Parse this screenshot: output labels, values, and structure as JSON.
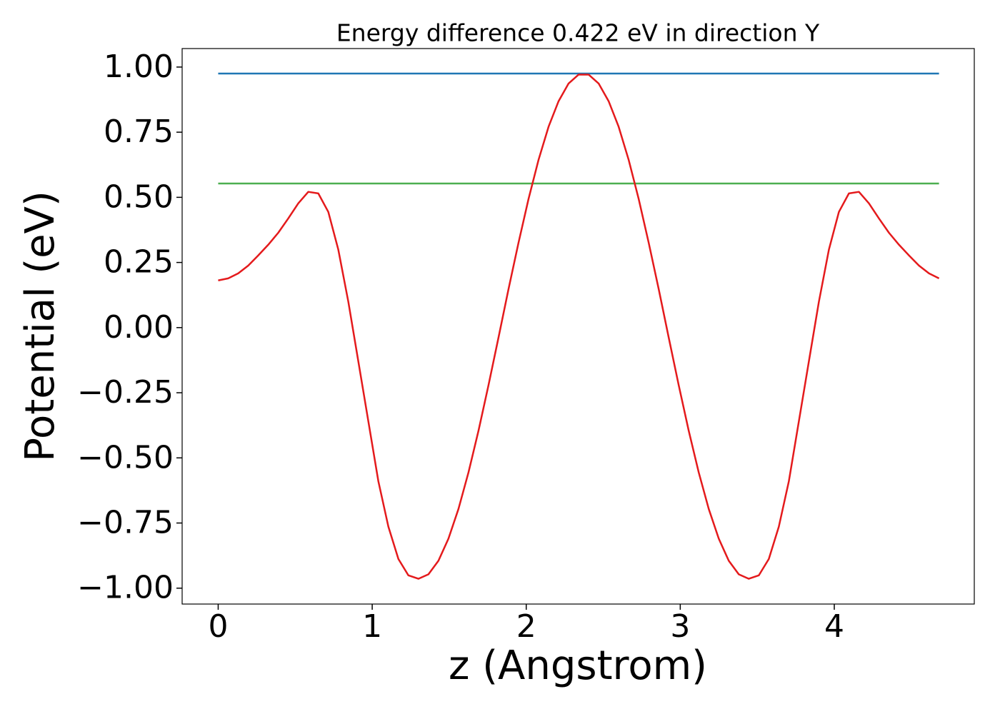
{
  "chart_data": {
    "type": "line",
    "title": "Energy difference 0.422 eV in direction Y",
    "xlabel": "z (Angstrom)",
    "ylabel": "Potential (eV)",
    "xlim": [
      -0.234,
      4.909
    ],
    "ylim": [
      -1.061,
      1.071
    ],
    "xticks": [
      0,
      1,
      2,
      3,
      4
    ],
    "yticks": [
      {
        "value": 1,
        "label": "1.00"
      },
      {
        "value": 0.75,
        "label": "0.75"
      },
      {
        "value": 0.5,
        "label": "0.50"
      },
      {
        "value": 0.25,
        "label": "0.25"
      },
      {
        "value": 0,
        "label": "0.00"
      },
      {
        "value": -0.25,
        "label": "−0.25"
      },
      {
        "value": -0.5,
        "label": "−0.50"
      },
      {
        "value": -0.75,
        "label": "−0.75"
      },
      {
        "value": -1,
        "label": "−1.00"
      }
    ],
    "grid": false,
    "series": [
      {
        "color": "#1f77b4",
        "x": [
          0,
          4.68
        ],
        "values": [
          0.975,
          0.975
        ]
      },
      {
        "color": "#4caf50",
        "x": [
          0,
          4.68
        ],
        "values": [
          0.553,
          0.553
        ]
      },
      {
        "color": "#e41a1c",
        "x": [
          0,
          0.065,
          0.13,
          0.195,
          0.26,
          0.325,
          0.39,
          0.455,
          0.52,
          0.585,
          0.65,
          0.715,
          0.78,
          0.845,
          0.91,
          0.975,
          1.04,
          1.105,
          1.17,
          1.235,
          1.3,
          1.365,
          1.43,
          1.495,
          1.56,
          1.625,
          1.69,
          1.755,
          1.82,
          1.885,
          1.95,
          2.015,
          2.08,
          2.145,
          2.21,
          2.275,
          2.34,
          2.405,
          2.47,
          2.535,
          2.6,
          2.665,
          2.73,
          2.795,
          2.86,
          2.925,
          2.99,
          3.055,
          3.12,
          3.185,
          3.25,
          3.315,
          3.38,
          3.445,
          3.51,
          3.575,
          3.64,
          3.705,
          3.77,
          3.835,
          3.9,
          3.965,
          4.03,
          4.095,
          4.16,
          4.225,
          4.29,
          4.355,
          4.42,
          4.485,
          4.55,
          4.615,
          4.68
        ],
        "values": [
          0.181,
          0.189,
          0.208,
          0.238,
          0.277,
          0.318,
          0.364,
          0.419,
          0.477,
          0.521,
          0.515,
          0.444,
          0.299,
          0.099,
          -0.13,
          -0.36,
          -0.59,
          -0.764,
          -0.888,
          -0.951,
          -0.964,
          -0.947,
          -0.895,
          -0.81,
          -0.696,
          -0.556,
          -0.396,
          -0.221,
          -0.038,
          0.148,
          0.326,
          0.494,
          0.644,
          0.771,
          0.869,
          0.937,
          0.971,
          0.971,
          0.937,
          0.869,
          0.771,
          0.644,
          0.494,
          0.326,
          0.148,
          -0.038,
          -0.221,
          -0.396,
          -0.556,
          -0.696,
          -0.81,
          -0.895,
          -0.947,
          -0.964,
          -0.951,
          -0.888,
          -0.764,
          -0.59,
          -0.36,
          -0.13,
          0.099,
          0.299,
          0.444,
          0.515,
          0.521,
          0.477,
          0.419,
          0.364,
          0.318,
          0.277,
          0.238,
          0.208,
          0.189
        ]
      }
    ]
  }
}
